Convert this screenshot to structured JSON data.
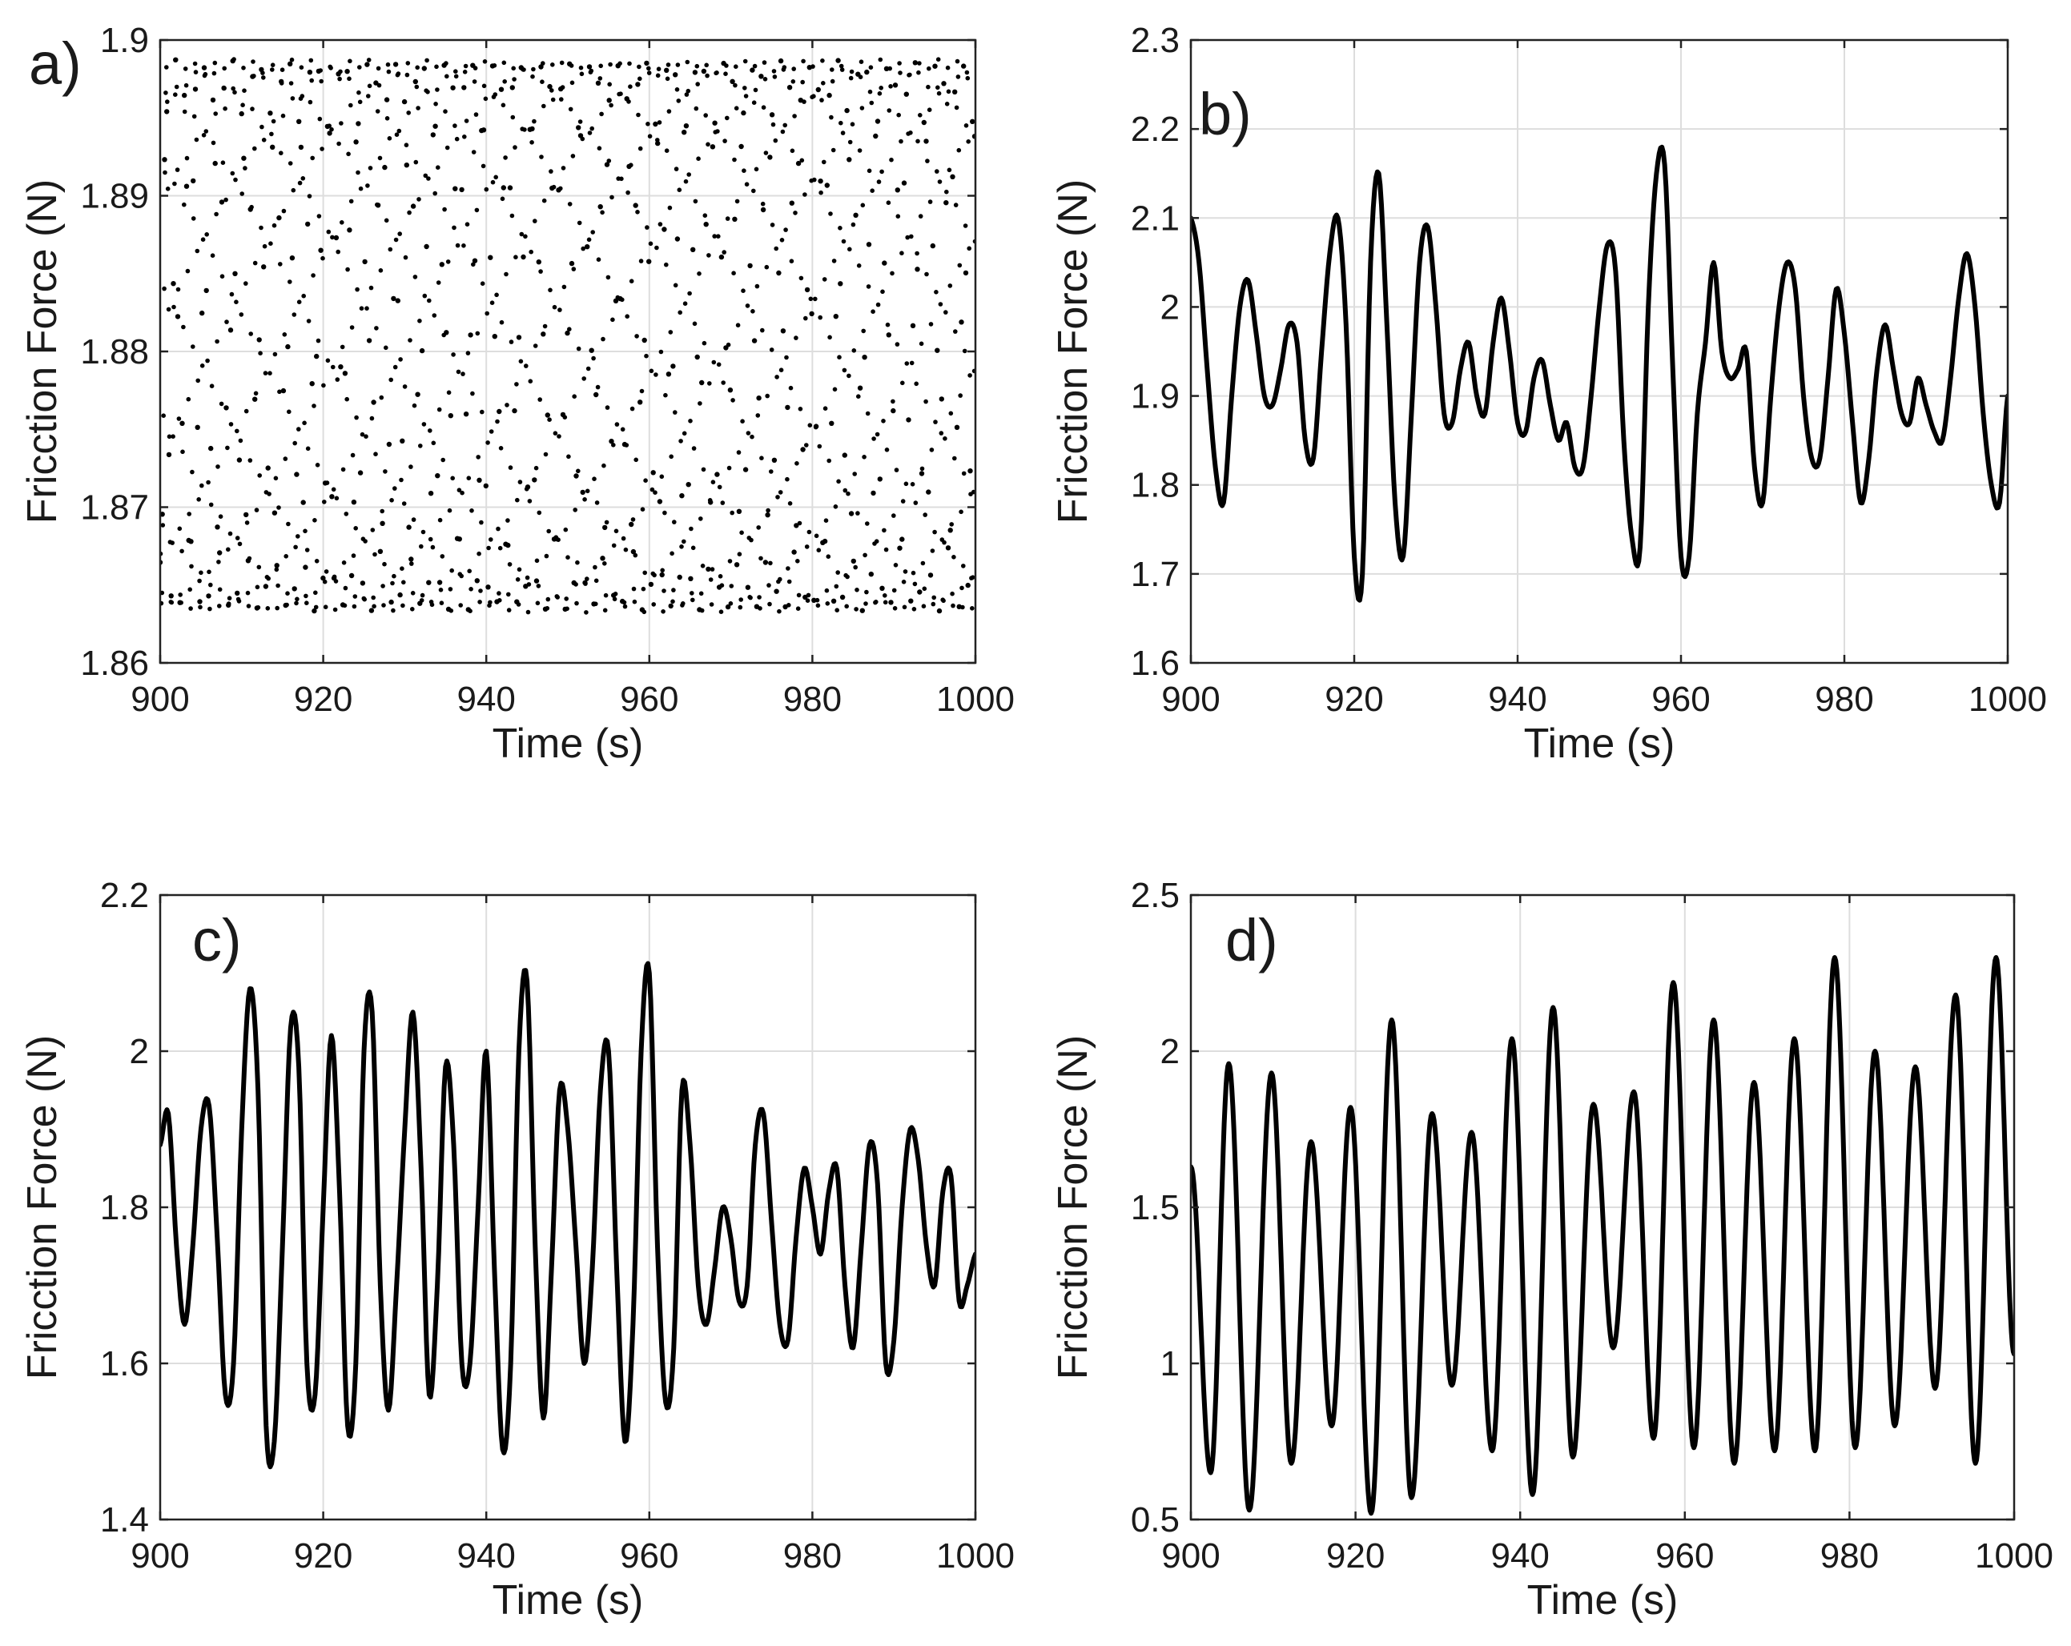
{
  "chart_data": [
    {
      "id": "a",
      "type": "scatter",
      "panel_label": "a)",
      "xlabel": "Time (s)",
      "ylabel": "Fricction Force (N)",
      "xlim": [
        900,
        1000
      ],
      "ylim": [
        1.86,
        1.9
      ],
      "xticks": [
        900,
        920,
        940,
        960,
        980,
        1000
      ],
      "yticks": [
        1.86,
        1.87,
        1.88,
        1.89,
        1.9
      ],
      "xtick_labels": [
        "900",
        "920",
        "940",
        "960",
        "980",
        "1000"
      ],
      "ytick_labels": [
        "1.86",
        "1.87",
        "1.88",
        "1.89",
        "1.9"
      ],
      "grid": true,
      "series": [
        {
          "name": "friction_force_a",
          "description": "dense dotted quasi-periodic oscillation filling band",
          "band_min": 1.8635,
          "band_max": 1.8985,
          "period_s": 1.18,
          "sampling_step_s": 0.27,
          "envelope_ripple_period_s": 2.4
        }
      ]
    },
    {
      "id": "b",
      "type": "line",
      "panel_label": "b)",
      "xlabel": "Time (s)",
      "ylabel": "Fricction Force (N)",
      "xlim": [
        900,
        1000
      ],
      "ylim": [
        1.6,
        2.3
      ],
      "xticks": [
        900,
        920,
        940,
        960,
        980,
        1000
      ],
      "yticks": [
        1.6,
        1.7,
        1.8,
        1.9,
        2.0,
        2.1,
        2.2,
        2.3
      ],
      "xtick_labels": [
        "900",
        "920",
        "940",
        "960",
        "980",
        "1000"
      ],
      "ytick_labels": [
        "1.6",
        "1.7",
        "1.8",
        "1.9",
        "2",
        "2.1",
        "2.2",
        "2.3"
      ],
      "grid": true,
      "series": [
        {
          "name": "friction_force_b",
          "x": [
            900,
            901,
            902,
            903,
            904,
            905,
            906,
            907,
            908,
            909,
            910,
            911,
            912,
            913,
            914,
            915,
            916,
            917,
            918,
            919,
            920,
            921,
            922,
            923,
            924,
            925,
            926,
            927,
            928,
            929,
            930,
            931,
            932,
            933,
            934,
            935,
            936,
            937,
            938,
            939,
            940,
            941,
            942,
            943,
            944,
            945,
            946,
            947,
            948,
            949,
            950,
            951,
            952,
            953,
            954,
            955,
            956,
            957,
            958,
            959,
            960,
            961,
            962,
            963,
            964,
            965,
            966,
            967,
            968,
            969,
            970,
            971,
            972,
            973,
            974,
            975,
            976,
            977,
            978,
            979,
            980,
            981,
            982,
            983,
            984,
            985,
            986,
            987,
            988,
            989,
            990,
            991,
            992,
            993,
            994,
            995,
            996,
            997,
            998,
            999,
            1000
          ],
          "y": [
            2.1,
            2.05,
            1.93,
            1.82,
            1.78,
            1.9,
            2.0,
            2.03,
            1.97,
            1.9,
            1.89,
            1.93,
            1.98,
            1.96,
            1.85,
            1.83,
            1.95,
            2.06,
            2.1,
            1.98,
            1.72,
            1.7,
            2.05,
            2.15,
            1.98,
            1.78,
            1.72,
            1.88,
            2.05,
            2.09,
            2.0,
            1.88,
            1.87,
            1.93,
            1.96,
            1.9,
            1.88,
            1.96,
            2.01,
            1.95,
            1.87,
            1.86,
            1.92,
            1.94,
            1.89,
            1.85,
            1.87,
            1.82,
            1.82,
            1.9,
            2.0,
            2.07,
            2.04,
            1.85,
            1.74,
            1.73,
            2.0,
            2.15,
            2.16,
            1.93,
            1.72,
            1.72,
            1.88,
            1.96,
            2.05,
            1.95,
            1.92,
            1.93,
            1.95,
            1.82,
            1.78,
            1.9,
            2.0,
            2.05,
            2.02,
            1.9,
            1.83,
            1.83,
            1.92,
            2.02,
            1.97,
            1.87,
            1.78,
            1.83,
            1.93,
            1.98,
            1.93,
            1.88,
            1.87,
            1.92,
            1.89,
            1.86,
            1.85,
            1.92,
            2.01,
            2.06,
            2.0,
            1.88,
            1.8,
            1.78,
            1.9
          ]
        }
      ]
    },
    {
      "id": "c",
      "type": "line",
      "panel_label": "c)",
      "xlabel": "Time (s)",
      "ylabel": "Fricction Force (N)",
      "xlim": [
        900,
        1000
      ],
      "ylim": [
        1.4,
        2.2
      ],
      "xticks": [
        900,
        920,
        940,
        960,
        980,
        1000
      ],
      "yticks": [
        1.4,
        1.6,
        1.8,
        2.0,
        2.2
      ],
      "xtick_labels": [
        "900",
        "920",
        "940",
        "960",
        "980",
        "1000"
      ],
      "ytick_labels": [
        "1.4",
        "1.6",
        "1.8",
        "2",
        "2.2"
      ],
      "grid": true,
      "series": [
        {
          "name": "friction_force_c",
          "x": [
            900,
            901,
            902,
            903,
            904,
            905,
            906,
            907,
            908,
            909,
            910,
            911,
            912,
            913,
            914,
            915,
            916,
            917,
            918,
            919,
            920,
            921,
            922,
            923,
            924,
            925,
            926,
            927,
            928,
            929,
            930,
            931,
            932,
            933,
            934,
            935,
            936,
            937,
            938,
            939,
            940,
            941,
            942,
            943,
            944,
            945,
            946,
            947,
            948,
            949,
            950,
            951,
            952,
            953,
            954,
            955,
            956,
            957,
            958,
            959,
            960,
            961,
            962,
            963,
            964,
            965,
            966,
            967,
            968,
            969,
            970,
            971,
            972,
            973,
            974,
            975,
            976,
            977,
            978,
            979,
            980,
            981,
            982,
            983,
            984,
            985,
            986,
            987,
            988,
            989,
            990,
            991,
            992,
            993,
            994,
            995,
            996,
            997,
            998,
            999,
            1000
          ],
          "y": [
            1.88,
            1.92,
            1.75,
            1.65,
            1.75,
            1.9,
            1.93,
            1.76,
            1.56,
            1.6,
            1.9,
            2.08,
            1.95,
            1.52,
            1.5,
            1.75,
            2.03,
            1.98,
            1.6,
            1.56,
            1.8,
            2.02,
            1.82,
            1.52,
            1.6,
            2.0,
            2.05,
            1.7,
            1.54,
            1.7,
            1.9,
            2.05,
            1.85,
            1.56,
            1.7,
            1.98,
            1.88,
            1.6,
            1.6,
            1.8,
            2.0,
            1.72,
            1.49,
            1.6,
            2.0,
            2.09,
            1.75,
            1.53,
            1.72,
            1.95,
            1.9,
            1.75,
            1.6,
            1.72,
            1.95,
            2.0,
            1.72,
            1.5,
            1.65,
            2.0,
            2.1,
            1.75,
            1.55,
            1.62,
            1.95,
            1.88,
            1.7,
            1.65,
            1.72,
            1.8,
            1.76,
            1.68,
            1.7,
            1.88,
            1.92,
            1.78,
            1.65,
            1.63,
            1.76,
            1.85,
            1.8,
            1.74,
            1.82,
            1.85,
            1.7,
            1.62,
            1.75,
            1.88,
            1.83,
            1.6,
            1.63,
            1.8,
            1.9,
            1.86,
            1.75,
            1.7,
            1.82,
            1.84,
            1.68,
            1.7,
            1.74
          ]
        }
      ]
    },
    {
      "id": "d",
      "type": "line",
      "panel_label": "d)",
      "xlabel": "Time (s)",
      "ylabel": "Fricction Force (N)",
      "xlim": [
        900,
        1000
      ],
      "ylim": [
        0.5,
        2.5
      ],
      "xticks": [
        900,
        920,
        940,
        960,
        980,
        1000
      ],
      "yticks": [
        0.5,
        1.0,
        1.5,
        2.0,
        2.5
      ],
      "xtick_labels": [
        "900",
        "920",
        "940",
        "960",
        "980",
        "1000"
      ],
      "ytick_labels": [
        "0.5",
        "1",
        "1.5",
        "2",
        "2.5"
      ],
      "grid": true,
      "series": [
        {
          "name": "friction_force_d",
          "extrema": [
            [
              900.0,
              1.63
            ],
            [
              902.4,
              0.65
            ],
            [
              904.6,
              1.96
            ],
            [
              907.1,
              0.53
            ],
            [
              909.8,
              1.93
            ],
            [
              912.2,
              0.68
            ],
            [
              914.6,
              1.71
            ],
            [
              917.1,
              0.8
            ],
            [
              919.4,
              1.82
            ],
            [
              921.9,
              0.52
            ],
            [
              924.4,
              2.1
            ],
            [
              926.8,
              0.57
            ],
            [
              929.3,
              1.8
            ],
            [
              931.7,
              0.93
            ],
            [
              934.1,
              1.74
            ],
            [
              936.6,
              0.72
            ],
            [
              939.0,
              2.04
            ],
            [
              941.5,
              0.58
            ],
            [
              944.0,
              2.14
            ],
            [
              946.4,
              0.7
            ],
            [
              948.9,
              1.83
            ],
            [
              951.3,
              1.05
            ],
            [
              953.8,
              1.87
            ],
            [
              956.2,
              0.76
            ],
            [
              958.6,
              2.22
            ],
            [
              961.1,
              0.73
            ],
            [
              963.5,
              2.1
            ],
            [
              966.0,
              0.68
            ],
            [
              968.4,
              1.9
            ],
            [
              970.9,
              0.72
            ],
            [
              973.3,
              2.04
            ],
            [
              975.8,
              0.72
            ],
            [
              978.2,
              2.3
            ],
            [
              980.7,
              0.73
            ],
            [
              983.1,
              2.0
            ],
            [
              985.5,
              0.8
            ],
            [
              988.0,
              1.95
            ],
            [
              990.4,
              0.92
            ],
            [
              992.9,
              2.18
            ],
            [
              995.3,
              0.68
            ],
            [
              997.8,
              2.3
            ],
            [
              1000.0,
              1.03
            ]
          ]
        }
      ]
    }
  ]
}
